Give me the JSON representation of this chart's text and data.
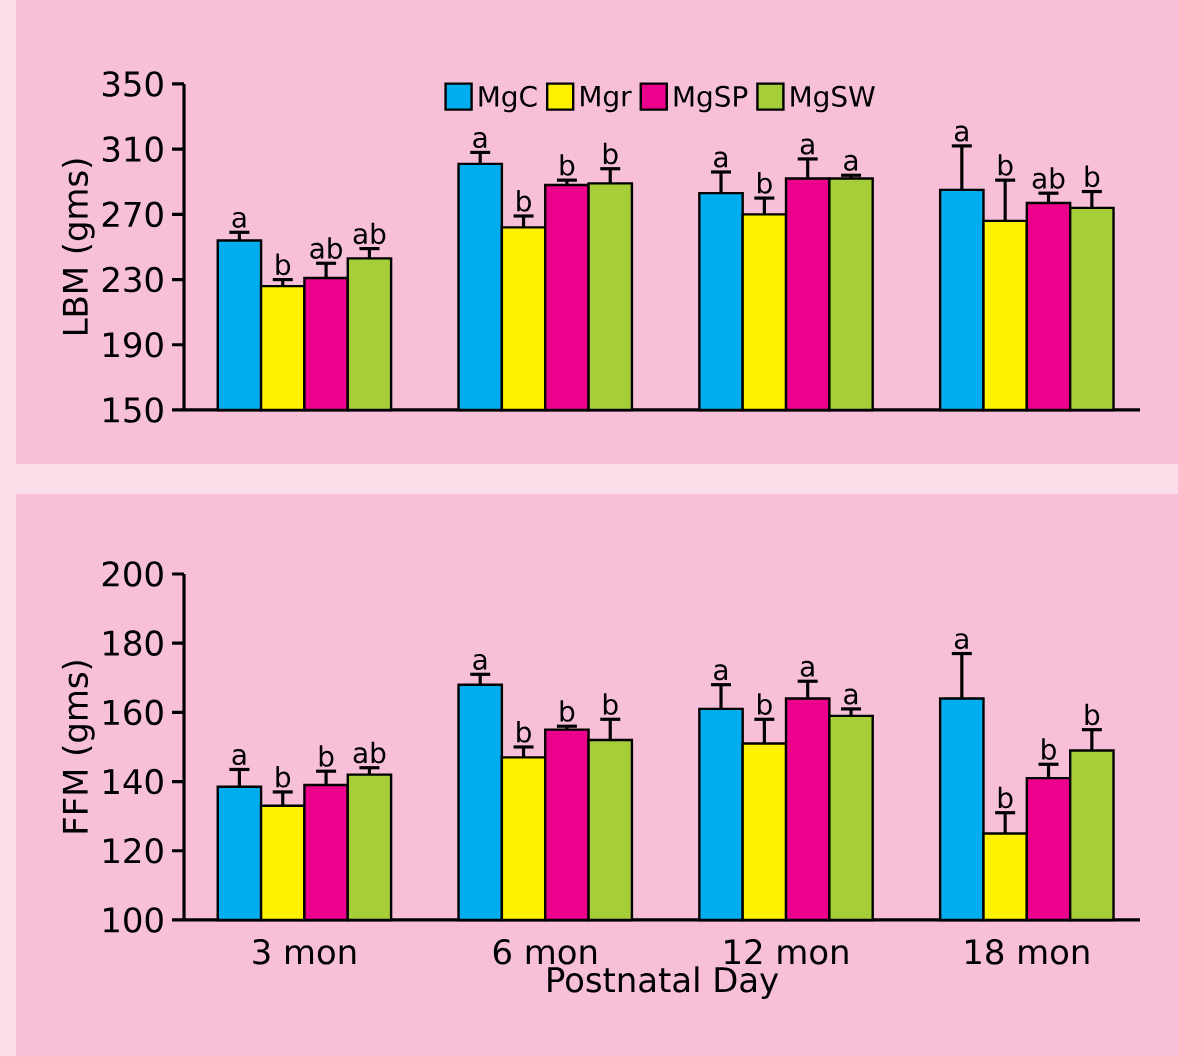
{
  "chart_data": [
    {
      "type": "bar",
      "ylabel": "LBM (gms)",
      "categories": [
        null,
        null,
        null,
        null
      ],
      "ylim": [
        150,
        350
      ],
      "yticks": [
        150,
        190,
        230,
        270,
        310,
        350
      ],
      "tick_labels": "y",
      "legend": "top",
      "series": [
        {
          "name": "MgC",
          "color": "#00aeef",
          "values": [
            254,
            301,
            283,
            285
          ],
          "errors": [
            5,
            7,
            13,
            27
          ],
          "value_labels": [
            "a",
            "a",
            "a",
            "a"
          ]
        },
        {
          "name": "Mgr",
          "color": "#fff200",
          "values": [
            226,
            262,
            270,
            266
          ],
          "errors": [
            4,
            7,
            10,
            25
          ],
          "value_labels": [
            "b",
            "b",
            "b",
            "b"
          ]
        },
        {
          "name": "MgSP",
          "color": "#ec008c",
          "values": [
            231,
            288,
            292,
            277
          ],
          "errors": [
            9,
            3,
            12,
            6
          ],
          "value_labels": [
            "ab",
            "b",
            "a",
            "ab"
          ]
        },
        {
          "name": "MgSW",
          "color": "#a6ce39",
          "values": [
            243,
            289,
            292,
            274
          ],
          "errors": [
            6,
            9,
            2,
            10
          ],
          "value_labels": [
            "ab",
            "b",
            "a",
            "b"
          ]
        }
      ]
    },
    {
      "type": "bar",
      "ylabel": "FFM (gms)",
      "xlabel": "Postnatal Day",
      "categories": [
        "3 mon",
        "6 mon",
        "12 mon",
        "18 mon"
      ],
      "ylim": [
        100,
        200
      ],
      "yticks": [
        100,
        120,
        140,
        160,
        180,
        200
      ],
      "series": [
        {
          "color": "#00aeef",
          "values": [
            138.5,
            168,
            161,
            164
          ],
          "errors": [
            5,
            3,
            7,
            13
          ],
          "value_labels": [
            "a",
            "a",
            "a",
            "a"
          ]
        },
        {
          "color": "#fff200",
          "values": [
            133,
            147,
            151,
            125
          ],
          "errors": [
            4,
            3,
            7,
            6
          ],
          "value_labels": [
            "b",
            "b",
            "b",
            "b"
          ]
        },
        {
          "color": "#ec008c",
          "values": [
            139,
            155,
            164,
            141
          ],
          "errors": [
            4,
            1,
            5,
            4
          ],
          "value_labels": [
            "b",
            "b",
            "a",
            "b"
          ]
        },
        {
          "color": "#a6ce39",
          "values": [
            142,
            152,
            159,
            149
          ],
          "errors": [
            2,
            6,
            2,
            6
          ],
          "value_labels": [
            "ab",
            "b",
            "a",
            "b"
          ]
        }
      ]
    }
  ]
}
